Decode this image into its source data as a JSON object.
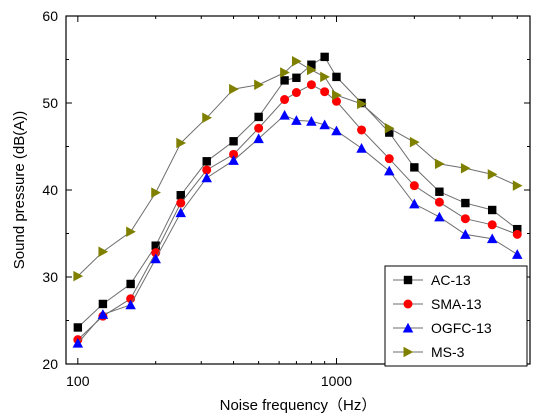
{
  "chart_data": {
    "type": "line",
    "xlabel": "Noise frequency（Hz）",
    "ylabel": "Sound pressure  (dB(A))",
    "xscale": "log",
    "xlim": [
      90,
      5600
    ],
    "ylim": [
      20,
      60
    ],
    "x_ticks": [
      100,
      1000
    ],
    "x_tick_labels": [
      "100",
      "1000"
    ],
    "y_ticks": [
      20,
      30,
      40,
      50,
      60
    ],
    "y_tick_labels": [
      "20",
      "30",
      "40",
      "50",
      "60"
    ],
    "legend_position": "bottom-right",
    "grid": false,
    "x": [
      100,
      125,
      160,
      200,
      250,
      315,
      400,
      500,
      630,
      700,
      800,
      900,
      1000,
      1250,
      1600,
      2000,
      2500,
      3150,
      4000,
      5000
    ],
    "series": [
      {
        "name": "AC-13",
        "color": "#000000",
        "marker": "square",
        "values": [
          24.2,
          26.9,
          29.2,
          33.6,
          39.4,
          43.3,
          45.6,
          48.4,
          52.6,
          52.9,
          54.4,
          55.3,
          53.0,
          50.0,
          46.6,
          42.6,
          39.8,
          38.5,
          37.7,
          35.5
        ]
      },
      {
        "name": "SMA-13",
        "color": "#ff0000",
        "marker": "circle",
        "values": [
          22.8,
          25.5,
          27.5,
          32.8,
          38.5,
          42.3,
          44.1,
          47.1,
          50.4,
          51.2,
          52.1,
          51.3,
          50.2,
          46.9,
          43.6,
          40.5,
          38.6,
          36.7,
          36.0,
          34.9
        ]
      },
      {
        "name": "OGFC-13",
        "color": "#0000ff",
        "marker": "triangle-up",
        "values": [
          22.4,
          25.7,
          26.8,
          32.1,
          37.4,
          41.4,
          43.4,
          45.9,
          48.6,
          48.0,
          47.9,
          47.5,
          46.8,
          44.8,
          42.2,
          38.4,
          36.9,
          34.9,
          34.4,
          32.6
        ]
      },
      {
        "name": "MS-3",
        "color": "#808000",
        "marker": "triangle-right",
        "values": [
          30.1,
          32.9,
          35.2,
          39.7,
          45.4,
          48.3,
          51.6,
          52.1,
          53.5,
          54.8,
          53.8,
          53.0,
          50.9,
          49.9,
          47.1,
          45.5,
          43.0,
          42.5,
          41.8,
          40.5
        ]
      }
    ]
  }
}
